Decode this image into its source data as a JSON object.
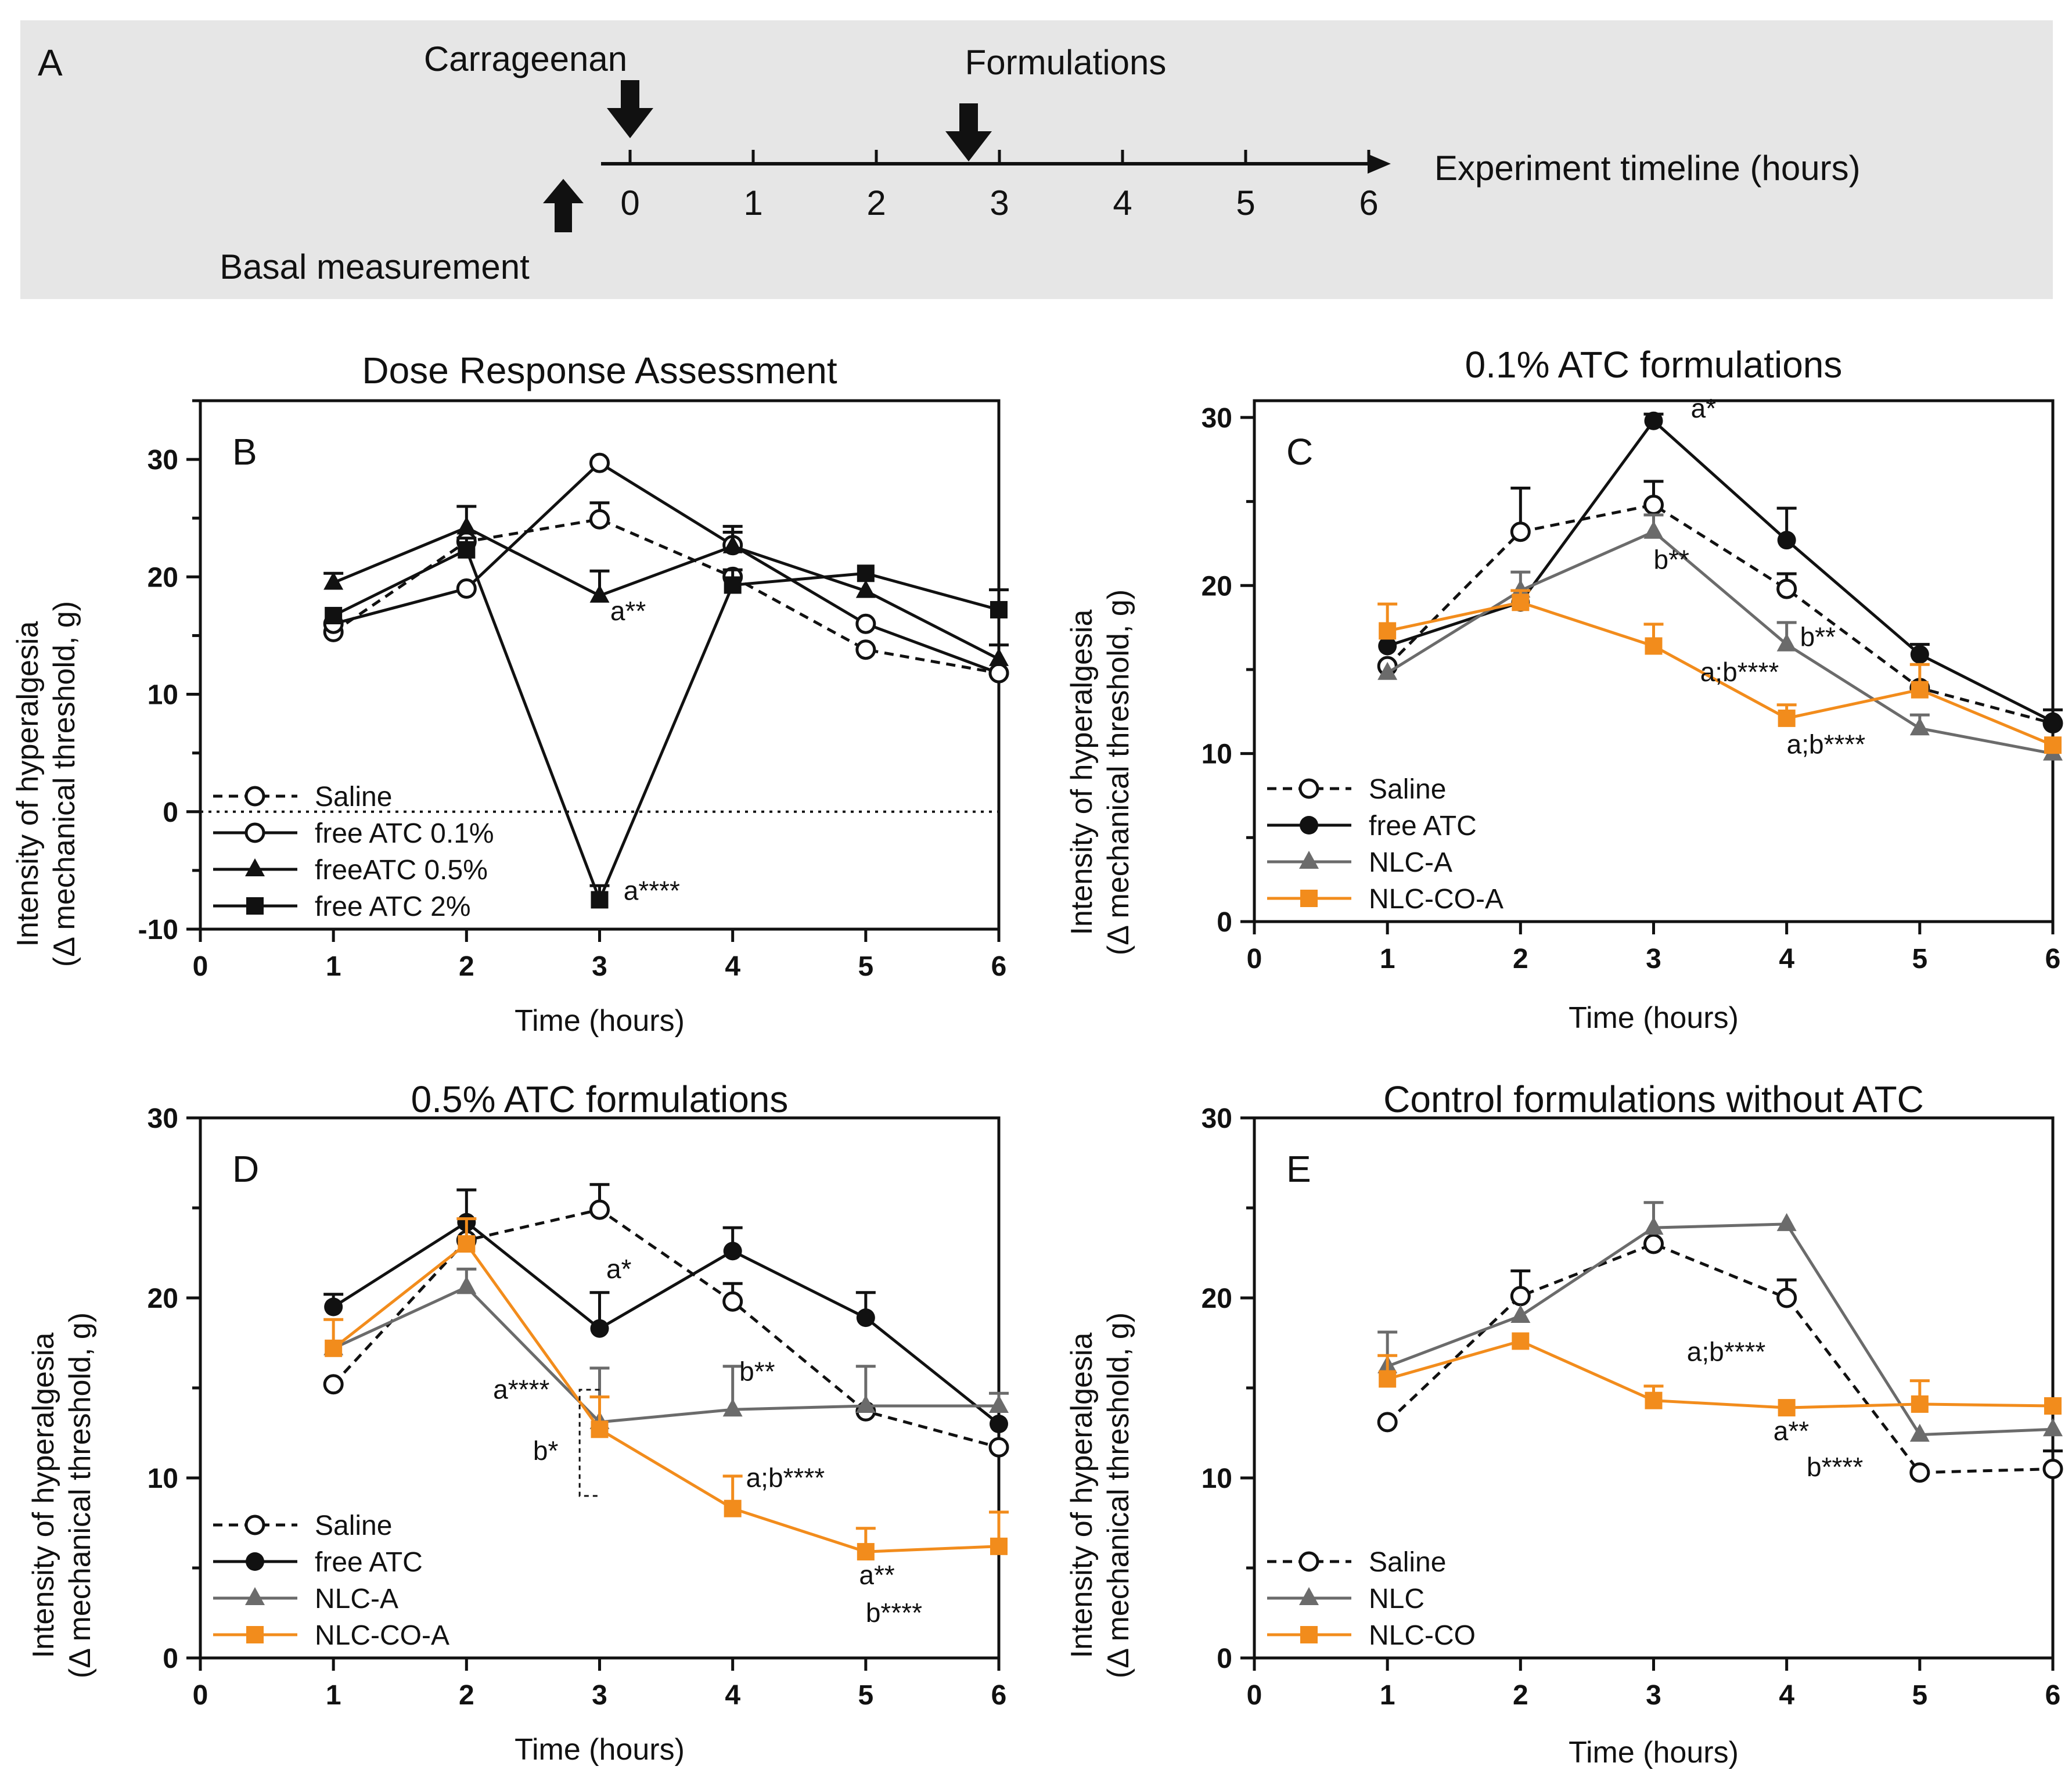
{
  "timeline": {
    "panel_label": "A",
    "carrageenan_label": "Carrageenan",
    "formulations_label": "Formulations",
    "basal_label": "Basal measurement",
    "axis_label": "Experiment timeline (hours)",
    "ticks": [
      "0",
      "1",
      "2",
      "3",
      "4",
      "5",
      "6"
    ],
    "carrageenan_hour": 0,
    "formulations_hour": 2.75
  },
  "colors": {
    "saline": "#111111",
    "free": "#111111",
    "nlc": "#6b6b6b",
    "nlcco": "#f28c1c",
    "timeline_bg": "#e6e6e6"
  },
  "chart_data": [
    {
      "panel": "B",
      "type": "line",
      "title": "Dose Response Assessment",
      "xlabel": "Time (hours)",
      "ylabel_line1": "Intensity of hyperalgesia",
      "ylabel_line2": "(Δ mechanical threshold, g)",
      "xlim": [
        0,
        6
      ],
      "ylim": [
        -10,
        35
      ],
      "xticks": [
        "0",
        "1",
        "2",
        "3",
        "4",
        "5",
        "6"
      ],
      "yticks": [
        "-10",
        "0",
        "10",
        "20",
        "30"
      ],
      "zero_line": true,
      "x": [
        1,
        2,
        3,
        4,
        5,
        6
      ],
      "series": [
        {
          "name": "Saline",
          "marker": "open-circle",
          "dashed": true,
          "color": "saline",
          "values": [
            15.3,
            23.0,
            24.9,
            20.0,
            13.8,
            11.8
          ],
          "errors": [
            0,
            0,
            1.4,
            0,
            0,
            0
          ]
        },
        {
          "name": "free ATC 0.1%",
          "marker": "open-circle",
          "dashed": false,
          "color": "free",
          "values": [
            16.0,
            19.0,
            29.7,
            22.7,
            16.0,
            11.8
          ],
          "errors": [
            0,
            0,
            0,
            1.6,
            0,
            0
          ]
        },
        {
          "name": "freeATC 0.5%",
          "marker": "triangle",
          "dashed": false,
          "color": "free",
          "values": [
            19.5,
            24.2,
            18.4,
            22.6,
            18.8,
            13.0
          ],
          "errors": [
            0.8,
            1.8,
            2.1,
            1.2,
            0,
            1.2
          ]
        },
        {
          "name": "free ATC 2%",
          "marker": "square",
          "dashed": false,
          "color": "free",
          "values": [
            16.7,
            22.3,
            -7.5,
            19.3,
            20.3,
            17.2
          ],
          "errors": [
            0,
            1.0,
            1.2,
            1.3,
            0,
            1.7
          ]
        }
      ],
      "annotations": [
        {
          "text": "a**",
          "x": 3.08,
          "y": 16.3
        },
        {
          "text": "a****",
          "x": 3.18,
          "y": -7.5
        }
      ],
      "legend_position": "bottom-left"
    },
    {
      "panel": "C",
      "type": "line",
      "title": "0.1% ATC formulations",
      "xlabel": "Time (hours)",
      "ylabel_line1": "Intensity of hyperalgesia",
      "ylabel_line2": "(Δ mechanical threshold, g)",
      "xlim": [
        0,
        6
      ],
      "ylim": [
        0,
        31
      ],
      "xticks": [
        "0",
        "1",
        "2",
        "3",
        "4",
        "5",
        "6"
      ],
      "yticks": [
        "0",
        "10",
        "20",
        "30"
      ],
      "zero_line": false,
      "x": [
        1,
        2,
        3,
        4,
        5,
        6
      ],
      "series": [
        {
          "name": "Saline",
          "marker": "open-circle",
          "dashed": true,
          "color": "saline",
          "values": [
            15.2,
            23.2,
            24.8,
            19.8,
            13.9,
            11.8
          ],
          "errors": [
            0,
            2.6,
            1.4,
            0.9,
            0,
            0
          ]
        },
        {
          "name": "free ATC",
          "marker": "circle",
          "dashed": false,
          "color": "free",
          "values": [
            16.4,
            19.0,
            29.8,
            22.7,
            15.9,
            11.9
          ],
          "errors": [
            0,
            0,
            0.4,
            1.9,
            0.6,
            0.7
          ]
        },
        {
          "name": "NLC-A",
          "marker": "triangle",
          "dashed": false,
          "color": "nlc",
          "values": [
            14.8,
            19.7,
            23.2,
            16.5,
            11.5,
            10.0
          ],
          "errors": [
            0,
            1.1,
            1.0,
            1.3,
            0.8,
            0
          ]
        },
        {
          "name": "NLC-CO-A",
          "marker": "square",
          "dashed": false,
          "color": "nlcco",
          "values": [
            17.3,
            19.0,
            16.4,
            12.1,
            13.8,
            10.5
          ],
          "errors": [
            1.6,
            0.7,
            1.3,
            0.8,
            1.5,
            0
          ]
        }
      ],
      "annotations": [
        {
          "text": "a*",
          "x": 3.28,
          "y": 30.0
        },
        {
          "text": "b**",
          "x": 3.0,
          "y": 21.0
        },
        {
          "text": "b**",
          "x": 4.1,
          "y": 16.4
        },
        {
          "text": "a;b****",
          "x": 3.35,
          "y": 14.3
        },
        {
          "text": "a;b****",
          "x": 4.0,
          "y": 10.0
        }
      ],
      "legend_position": "bottom-left"
    },
    {
      "panel": "D",
      "type": "line",
      "title": "0.5% ATC formulations",
      "xlabel": "Time  (hours)",
      "ylabel_line1": "Intensity of hyperalgesia",
      "ylabel_line2": "(Δ mechanical threshold, g)",
      "xlim": [
        0,
        6
      ],
      "ylim": [
        0,
        30
      ],
      "xticks": [
        "0",
        "1",
        "2",
        "3",
        "4",
        "5",
        "6"
      ],
      "yticks": [
        "0",
        "10",
        "20",
        "30"
      ],
      "zero_line": false,
      "x": [
        1,
        2,
        3,
        4,
        5,
        6
      ],
      "series": [
        {
          "name": "Saline",
          "marker": "open-circle",
          "dashed": true,
          "color": "saline",
          "values": [
            15.2,
            23.2,
            24.9,
            19.8,
            13.7,
            11.7
          ],
          "errors": [
            0,
            0,
            1.4,
            1.0,
            0,
            0
          ]
        },
        {
          "name": "free ATC",
          "marker": "circle",
          "dashed": false,
          "color": "free",
          "values": [
            19.5,
            24.2,
            18.3,
            22.6,
            18.9,
            13.0
          ],
          "errors": [
            0.7,
            1.8,
            2.0,
            1.3,
            1.4,
            0
          ]
        },
        {
          "name": "NLC-A",
          "marker": "triangle",
          "dashed": false,
          "color": "nlc",
          "values": [
            17.2,
            20.6,
            13.1,
            13.8,
            14.0,
            14.0
          ],
          "errors": [
            0,
            1.0,
            3.0,
            2.4,
            2.2,
            0.7
          ]
        },
        {
          "name": "NLC-CO-A",
          "marker": "square",
          "dashed": false,
          "color": "nlcco",
          "values": [
            17.2,
            23.0,
            12.7,
            8.3,
            5.9,
            6.2
          ],
          "errors": [
            1.6,
            1.4,
            1.8,
            1.8,
            1.3,
            1.9
          ]
        }
      ],
      "annotations": [
        {
          "text": "a*",
          "x": 3.05,
          "y": 21.1
        },
        {
          "text": "a****",
          "x": 2.2,
          "y": 14.4
        },
        {
          "text": "b*",
          "x": 2.5,
          "y": 11.0
        },
        {
          "text": "b**",
          "x": 4.05,
          "y": 15.4
        },
        {
          "text": "a;b****",
          "x": 4.1,
          "y": 9.5
        },
        {
          "text": "a**",
          "x": 4.95,
          "y": 4.1
        },
        {
          "text": "b****",
          "x": 5.0,
          "y": 2.0
        }
      ],
      "legend_position": "bottom-left"
    },
    {
      "panel": "E",
      "type": "line",
      "title": "Control formulations without ATC",
      "xlabel": "Time  (hours)",
      "ylabel_line1": "Intensity of hyperalgesia",
      "ylabel_line2": "(Δ mechanical threshold, g)",
      "xlim": [
        0,
        6
      ],
      "ylim": [
        0,
        30
      ],
      "xticks": [
        "0",
        "1",
        "2",
        "3",
        "4",
        "5",
        "6"
      ],
      "yticks": [
        "0",
        "10",
        "20",
        "30"
      ],
      "zero_line": false,
      "x": [
        1,
        2,
        3,
        4,
        5,
        6
      ],
      "series": [
        {
          "name": "Saline",
          "marker": "open-circle",
          "dashed": true,
          "color": "saline",
          "values": [
            13.1,
            20.1,
            23.0,
            20.0,
            10.3,
            10.5
          ],
          "errors": [
            0,
            1.4,
            0,
            1.0,
            0,
            1.0
          ]
        },
        {
          "name": "NLC",
          "marker": "triangle",
          "dashed": false,
          "color": "nlc",
          "values": [
            16.2,
            19.0,
            23.9,
            24.1,
            12.4,
            12.7
          ],
          "errors": [
            1.9,
            0,
            1.4,
            0,
            0,
            0
          ]
        },
        {
          "name": "NLC-CO",
          "marker": "square",
          "dashed": false,
          "color": "nlcco",
          "values": [
            15.5,
            17.6,
            14.3,
            13.9,
            14.1,
            14.0
          ],
          "errors": [
            1.3,
            0,
            0.8,
            0,
            1.3,
            0
          ]
        }
      ],
      "annotations": [
        {
          "text": "a;b****",
          "x": 3.25,
          "y": 16.5
        },
        {
          "text": "a**",
          "x": 3.9,
          "y": 12.1
        },
        {
          "text": "b****",
          "x": 4.15,
          "y": 10.1
        }
      ],
      "legend_position": "bottom-left"
    }
  ]
}
